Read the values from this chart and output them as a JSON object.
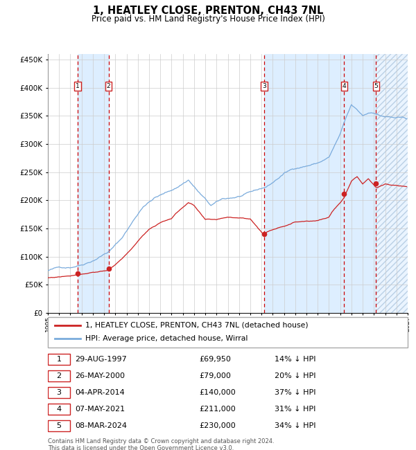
{
  "title": "1, HEATLEY CLOSE, PRENTON, CH43 7NL",
  "subtitle": "Price paid vs. HM Land Registry's House Price Index (HPI)",
  "footer1": "Contains HM Land Registry data © Crown copyright and database right 2024.",
  "footer2": "This data is licensed under the Open Government Licence v3.0.",
  "legend_line1": "1, HEATLEY CLOSE, PRENTON, CH43 7NL (detached house)",
  "legend_line2": "HPI: Average price, detached house, Wirral",
  "sales": [
    {
      "num": 1,
      "date": "29-AUG-1997",
      "price_str": "£69,950",
      "pct": "14% ↓ HPI",
      "year": 1997.66,
      "price": 69950
    },
    {
      "num": 2,
      "date": "26-MAY-2000",
      "price_str": "£79,000",
      "pct": "20% ↓ HPI",
      "year": 2000.4,
      "price": 79000
    },
    {
      "num": 3,
      "date": "04-APR-2014",
      "price_str": "£140,000",
      "pct": "37% ↓ HPI",
      "year": 2014.25,
      "price": 140000
    },
    {
      "num": 4,
      "date": "07-MAY-2021",
      "price_str": "£211,000",
      "pct": "31% ↓ HPI",
      "year": 2021.35,
      "price": 211000
    },
    {
      "num": 5,
      "date": "08-MAR-2024",
      "price_str": "£230,000",
      "pct": "34% ↓ HPI",
      "year": 2024.19,
      "price": 230000
    }
  ],
  "hpi_color": "#7aabdc",
  "price_color": "#cc2222",
  "background_color": "#ddeeff",
  "grid_color": "#cccccc",
  "vline_color": "#cc0000",
  "xmin": 1995,
  "xmax": 2027,
  "ymin": 0,
  "ymax": 460000
}
